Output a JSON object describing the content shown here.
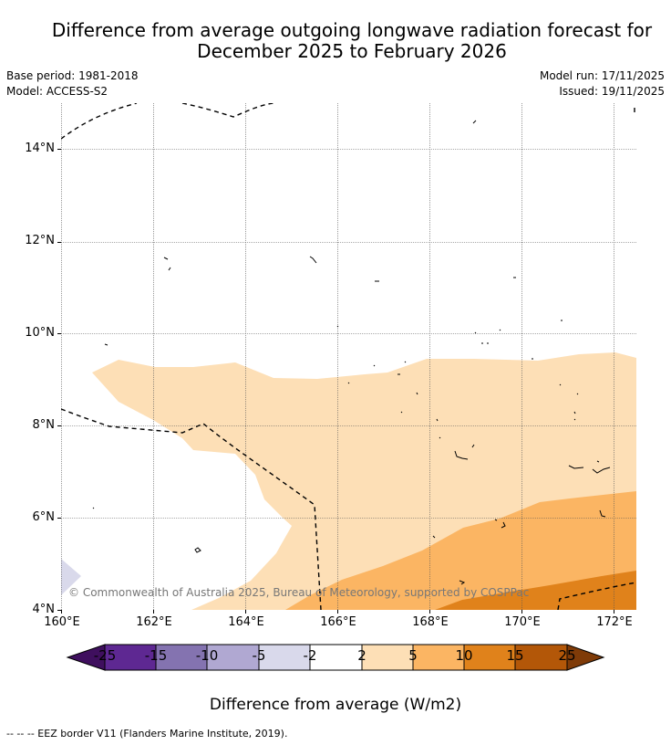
{
  "header": {
    "title_line1": "Difference from average outgoing longwave radiation forecast for",
    "title_line2": "December 2025 to February 2026",
    "base_period": "Base period: 1981-2018",
    "model": "Model: ACCESS-S2",
    "model_run": "Model run: 17/11/2025",
    "issued": "Issued: 19/11/2025"
  },
  "map": {
    "region_lon_range": [
      "160°E",
      "172.5°E"
    ],
    "region_lat_range": [
      "4°N",
      "15°N"
    ],
    "lat_labels": [
      "14°N",
      "12°N",
      "10°N",
      "8°N",
      "6°N",
      "4°N"
    ],
    "lon_labels": [
      "160°E",
      "162°E",
      "164°E",
      "166°E",
      "168°E",
      "170°E",
      "172°E"
    ],
    "copyright": "© Commonwealth of Australia 2025, Bureau of Meteorology, supported by COSPPac"
  },
  "colorbar": {
    "label": "Difference from average (W/m2)",
    "ticks": [
      "-25",
      "-15",
      "-10",
      "-5",
      "-2",
      "2",
      "5",
      "10",
      "15",
      "25"
    ],
    "colors": {
      "lt_minus25": "#3f0f5e",
      "c_m25_m15": "#5e2892",
      "c_m15_m10": "#8473b0",
      "c_m10_m5": "#b0a8d2",
      "c_m5_m2": "#d9d9eb",
      "c_m2_2": "#ffffff",
      "c_2_5": "#fddfb6",
      "c_5_10": "#fbb563",
      "c_10_15": "#e0821b",
      "c_15_25": "#b35708",
      "gt_25": "#7f3b08"
    }
  },
  "footnote": "--  --  -- EEZ border V11 (Flanders Marine Institute, 2019)."
}
